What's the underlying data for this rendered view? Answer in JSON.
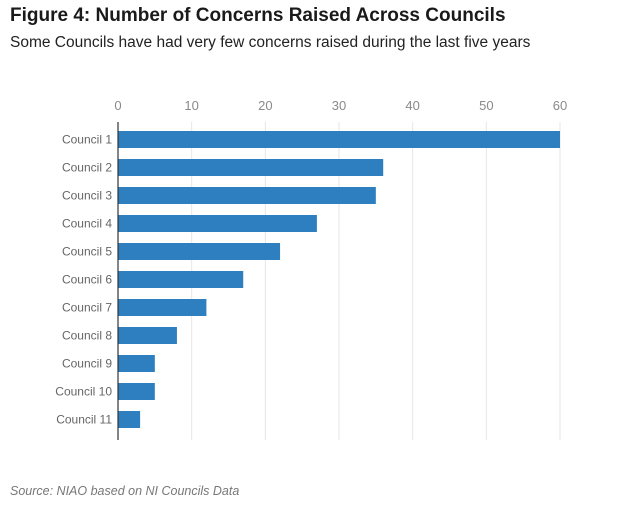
{
  "title": "Figure 4: Number of Concerns Raised Across Councils",
  "subtitle": "Some Councils have had very few concerns raised during the last five years",
  "source": "Source: NIAO based on NI Councils Data",
  "chart_data": {
    "type": "bar",
    "orientation": "horizontal",
    "title": "Figure 4: Number of Concerns Raised Across Councils",
    "subtitle": "Some Councils have had very few concerns raised during the last five years",
    "categories": [
      "Council 1",
      "Council 2",
      "Council 3",
      "Council 4",
      "Council 5",
      "Council 6",
      "Council 7",
      "Council 8",
      "Council 9",
      "Council 10",
      "Council 11"
    ],
    "values": [
      60,
      36,
      35,
      27,
      22,
      17,
      12,
      8,
      5,
      5,
      3
    ],
    "xlim": [
      0,
      60
    ],
    "x_ticks": [
      "0",
      "10",
      "20",
      "30",
      "40",
      "50",
      "60"
    ],
    "x_axis_position": "top",
    "grid": "vertical",
    "legend": "none",
    "bar_color": "#2e7fbf",
    "grid_color": "#e6e6e6"
  }
}
